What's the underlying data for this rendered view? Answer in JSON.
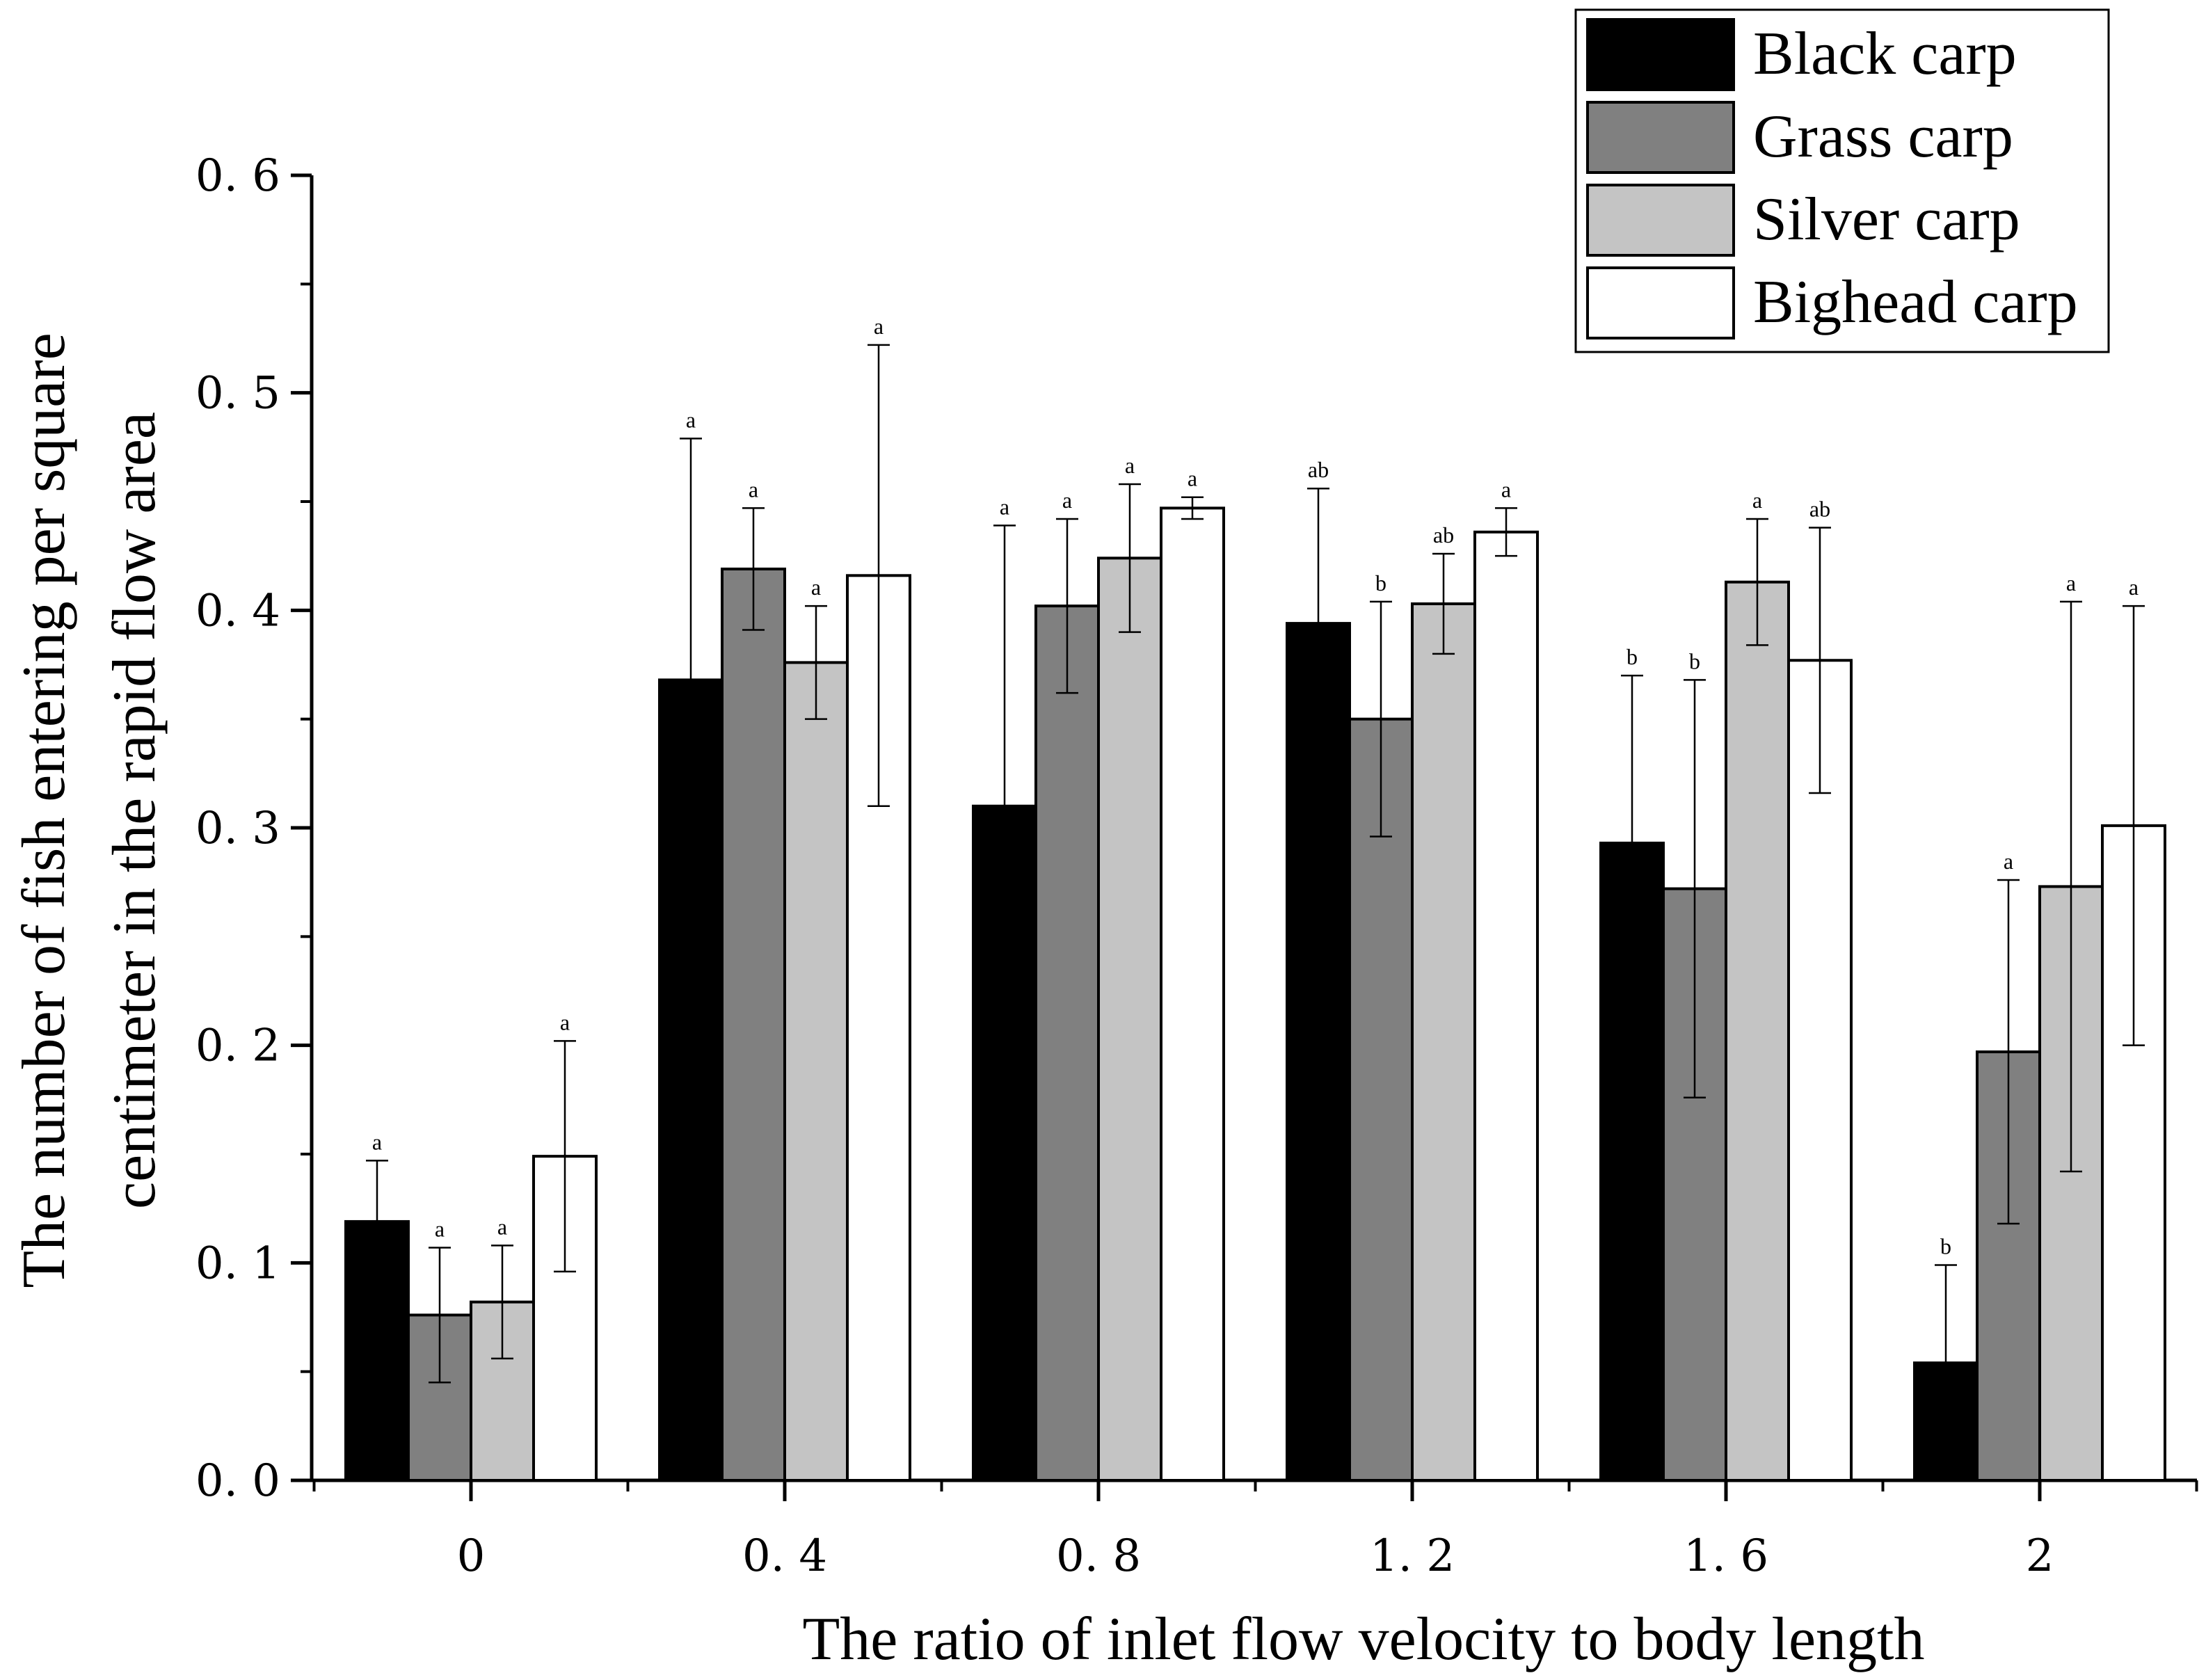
{
  "chart_data": {
    "type": "bar",
    "title": "",
    "xlabel": "The ratio of inlet flow velocity to body length",
    "ylabel_lines": [
      "The number of fish entering per square",
      "centimeter in the rapid flow area"
    ],
    "categories": [
      "0",
      "0. 4",
      "0. 8",
      "1. 2",
      "1. 6",
      "2"
    ],
    "yticks": [
      "0. 0",
      "0. 1",
      "0. 2",
      "0. 3",
      "0. 4",
      "0. 5",
      "0. 6"
    ],
    "ylim": [
      0,
      0.6
    ],
    "legend_position": "top-right",
    "series": [
      {
        "name": "Black carp",
        "color": "#000000",
        "values": [
          0.119,
          0.368,
          0.31,
          0.394,
          0.293,
          0.054
        ],
        "errors": [
          0.028,
          0.111,
          0.129,
          0.062,
          0.077,
          0.045
        ],
        "labels": [
          "a",
          "a",
          "a",
          "ab",
          "b",
          "b"
        ]
      },
      {
        "name": "Grass carp",
        "color": "#808080",
        "values": [
          0.076,
          0.419,
          0.402,
          0.35,
          0.272,
          0.197
        ],
        "errors": [
          0.031,
          0.028,
          0.04,
          0.054,
          0.096,
          0.079
        ],
        "labels": [
          "a",
          "a",
          "a",
          "b",
          "b",
          "a"
        ]
      },
      {
        "name": "Silver carp",
        "color": "#c4c4c4",
        "values": [
          0.082,
          0.376,
          0.424,
          0.403,
          0.413,
          0.273
        ],
        "errors": [
          0.026,
          0.026,
          0.034,
          0.023,
          0.029,
          0.131
        ],
        "labels": [
          "a",
          "a",
          "a",
          "ab",
          "a",
          "a"
        ]
      },
      {
        "name": "Bighead carp",
        "color": "#ffffff",
        "values": [
          0.149,
          0.416,
          0.447,
          0.436,
          0.377,
          0.301
        ],
        "errors": [
          0.053,
          0.106,
          0.005,
          0.011,
          0.061,
          0.101
        ],
        "labels": [
          "a",
          "a",
          "a",
          "a",
          "ab",
          "a"
        ]
      }
    ]
  }
}
